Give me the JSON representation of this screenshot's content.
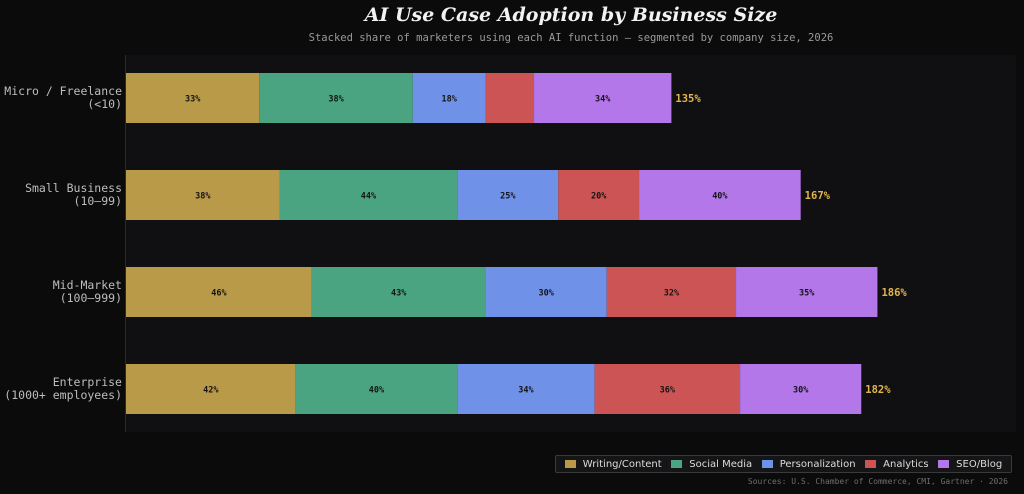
{
  "chart_data": {
    "type": "bar",
    "orientation": "horizontal",
    "stacked": true,
    "title": "AI Use Case Adoption by Business Size",
    "subtitle": "Stacked share of marketers using each AI function — segmented by company size, 2026",
    "categories": [
      [
        "Micro / Freelance",
        "(<10)"
      ],
      [
        "Small Business",
        "(10–99)"
      ],
      [
        "Mid-Market",
        "(100–999)"
      ],
      [
        "Enterprise",
        "(1000+ employees)"
      ]
    ],
    "series": [
      {
        "name": "Writing/Content",
        "color": "#b89a48",
        "values": [
          33,
          38,
          46,
          42
        ],
        "labels": [
          "33%",
          "38%",
          "46%",
          "42%"
        ]
      },
      {
        "name": "Social Media",
        "color": "#4aa482",
        "values": [
          38,
          44,
          43,
          40
        ],
        "labels": [
          "38%",
          "44%",
          "43%",
          "40%"
        ]
      },
      {
        "name": "Personalization",
        "color": "#6f92e8",
        "values": [
          18,
          25,
          30,
          34
        ],
        "labels": [
          "18%",
          "25%",
          "30%",
          "34%"
        ]
      },
      {
        "name": "Analytics",
        "color": "#cc5454",
        "values": [
          12,
          20,
          32,
          36
        ],
        "labels": [
          "",
          "20%",
          "32%",
          "36%"
        ]
      },
      {
        "name": "SEO/Blog",
        "color": "#b477ea",
        "values": [
          34,
          40,
          35,
          30
        ],
        "labels": [
          "34%",
          "40%",
          "35%",
          "30%"
        ]
      }
    ],
    "totals": [
      "135%",
      "167%",
      "186%",
      "182%"
    ],
    "total_color": "#e0b54e",
    "xlim": [
      0,
      220
    ],
    "grid": false,
    "legend_position": "bottom-right"
  },
  "source": "Sources: U.S. Chamber of Commerce, CMI, Gartner · 2026"
}
